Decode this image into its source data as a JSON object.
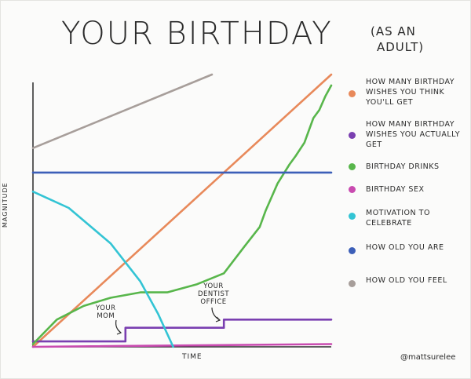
{
  "title": "YOUR BIRTHDAY",
  "subtitle_line1": "(AS AN",
  "subtitle_line2": "ADULT)",
  "signature": "@mattsurelee",
  "chart_data": {
    "type": "line",
    "xlabel": "TIME",
    "ylabel": "MAGNITUDE",
    "xlim": [
      0,
      100
    ],
    "ylim": [
      0,
      100
    ],
    "grid": false,
    "legend_placement": "right",
    "series": [
      {
        "name": "How Many Birthday Wishes You Think You'll Get",
        "color": "#e8895a",
        "x": [
          0,
          100
        ],
        "y": [
          0,
          100
        ]
      },
      {
        "name": "How Many Birthday Wishes You Actually Get",
        "color": "#7a3fb0",
        "x": [
          0,
          31,
          31,
          64,
          64,
          100
        ],
        "y": [
          2,
          2,
          7,
          7,
          10,
          10
        ]
      },
      {
        "name": "Birthday Drinks",
        "color": "#58b64b",
        "x": [
          0,
          8,
          17,
          26,
          36,
          45,
          55,
          64,
          71,
          76,
          78,
          82,
          86,
          88,
          91,
          94,
          96,
          98,
          100
        ],
        "y": [
          1,
          10,
          15,
          18,
          20,
          20,
          23,
          27,
          37,
          44,
          50,
          60,
          67,
          70,
          75,
          84,
          87,
          92,
          96
        ]
      },
      {
        "name": "Birthday Sex",
        "color": "#c94bb0",
        "x": [
          0,
          100
        ],
        "y": [
          0,
          1
        ]
      },
      {
        "name": "Motivation to Celebrate",
        "color": "#33c4d4",
        "x": [
          0,
          12,
          26,
          36,
          42,
          47
        ],
        "y": [
          57,
          51,
          38,
          24,
          12,
          0
        ]
      },
      {
        "name": "How Old You Are",
        "color": "#3c5fb8",
        "x": [
          0,
          100
        ],
        "y": [
          64,
          64
        ]
      },
      {
        "name": "How Old You Feel",
        "color": "#a79e9a",
        "x": [
          0,
          60
        ],
        "y": [
          73,
          100
        ]
      }
    ],
    "annotations": [
      {
        "text_line1": "YOUR",
        "text_line2": "MOM"
      },
      {
        "text_line1": "YOUR",
        "text_line2": "DENTIST",
        "text_line3": "OFFICE"
      }
    ]
  }
}
